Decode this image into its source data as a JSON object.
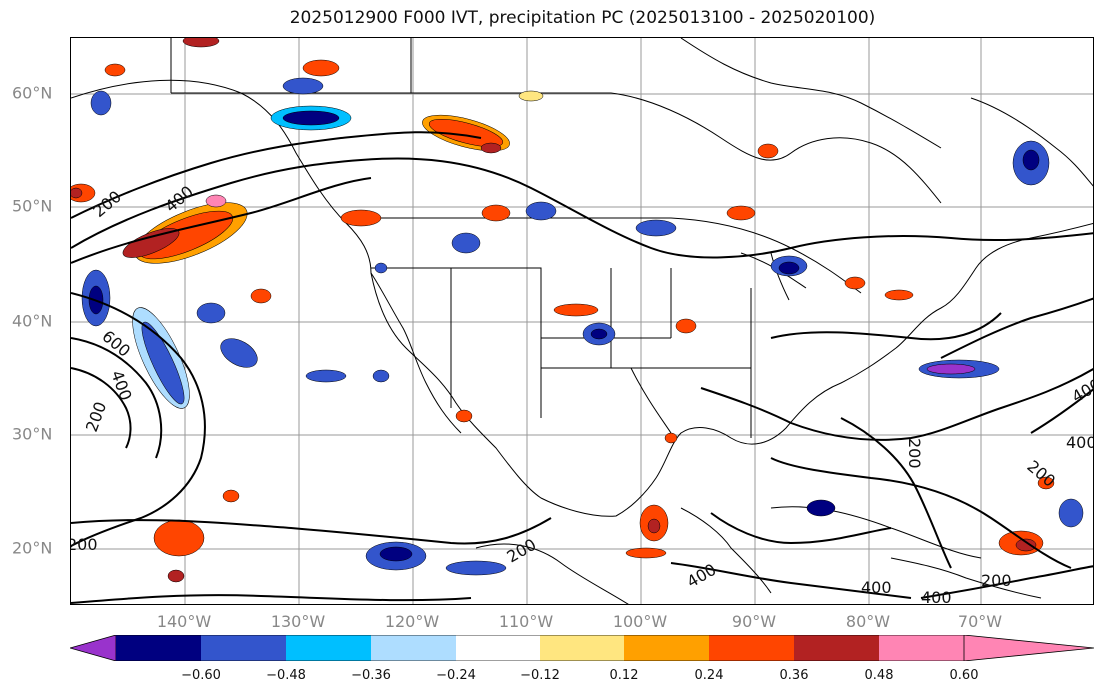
{
  "title": "2025012900 F000 IVT, precipitation PC (2025013100 - 2025020100)",
  "latitude_labels": [
    "60°N",
    "50°N",
    "40°N",
    "30°N",
    "20°N"
  ],
  "longitude_labels": [
    "140°W",
    "130°W",
    "120°W",
    "110°W",
    "100°W",
    "90°W",
    "80°W",
    "70°W"
  ],
  "contour_labels": [
    "200",
    "400",
    "600",
    "400",
    "200",
    "200",
    "200",
    "400",
    "400",
    "200",
    "400",
    "400",
    "200",
    "200",
    "400"
  ],
  "colorbar": {
    "tick_labels": [
      "−0.60",
      "−0.48",
      "−0.36",
      "−0.24",
      "−0.12",
      "0.12",
      "0.24",
      "0.36",
      "0.48",
      "0.60"
    ],
    "colors": [
      "#9933cc",
      "#000080",
      "#3355cc",
      "#00bfff",
      "#aeddff",
      "#ffffff",
      "#ffe680",
      "#ffa000",
      "#ff4500",
      "#b22222",
      "#ff85b4"
    ]
  }
}
